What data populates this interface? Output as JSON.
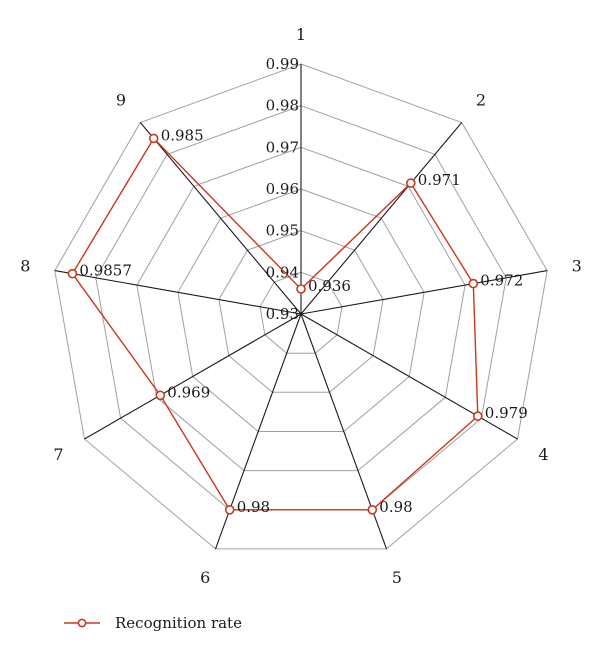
{
  "chart_data": {
    "type": "radar",
    "categories": [
      "1",
      "2",
      "3",
      "4",
      "5",
      "6",
      "7",
      "8",
      "9"
    ],
    "series": [
      {
        "name": "Recognition rate",
        "color": "#c8381c",
        "values": [
          0.936,
          0.971,
          0.972,
          0.979,
          0.98,
          0.98,
          0.969,
          0.9857,
          0.985
        ],
        "value_labels": [
          "0.936",
          "0.971",
          "0.972",
          "0.979",
          "0.98",
          "0.98",
          "0.969",
          "0.9857",
          "0.985"
        ]
      }
    ],
    "rlim": [
      0.93,
      0.99
    ],
    "radial_ticks": [
      "0.93",
      "0.94",
      "0.95",
      "0.96",
      "0.97",
      "0.98",
      "0.99"
    ],
    "grid": true,
    "legend_position": "bottom-left"
  }
}
